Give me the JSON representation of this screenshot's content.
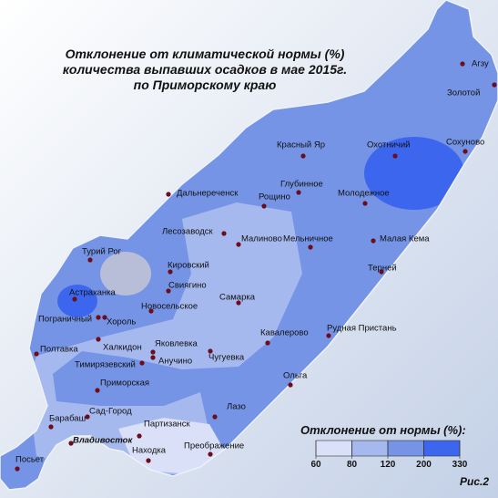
{
  "title": [
    "Отклонение от климатической нормы (%)",
    "количества выпавших осадков в мае 2015г.",
    "по Приморскому краю"
  ],
  "cities": [
    "Агзу",
    "Золотой",
    "Сохуново",
    "Охотничий",
    "Красный Яр",
    "Глубинное",
    "Молодежное",
    "Дальнереченск",
    "Рощино",
    "Лесозаводск",
    "Малиново",
    "Мельничное",
    "Малая Кема",
    "Турий Рог",
    "Кировский",
    "Терней",
    "Астраханка",
    "Свиягино",
    "Новосельское",
    "Самарка",
    "Пограничный",
    "Хороль",
    "Рудная Пристань",
    "Кавалерово",
    "Халкидон",
    "Полтавка",
    "Яковлевка",
    "Анучино",
    "Чугуевка",
    "Тимирязевский",
    "Ольга",
    "Приморская",
    "Лазо",
    "Сад-Город",
    "Барабаш",
    "Партизанск",
    "Владивосток",
    "Находка",
    "Преображение",
    "Посьет"
  ],
  "legend": {
    "title": "Отклонение от нормы (%):",
    "ticks": [
      60,
      80,
      120,
      200,
      330
    ],
    "colors": [
      "#d9e0f7",
      "#a6b9ef",
      "#7594e6",
      "#3d66ee"
    ]
  },
  "figure_label": "Рис.2"
}
